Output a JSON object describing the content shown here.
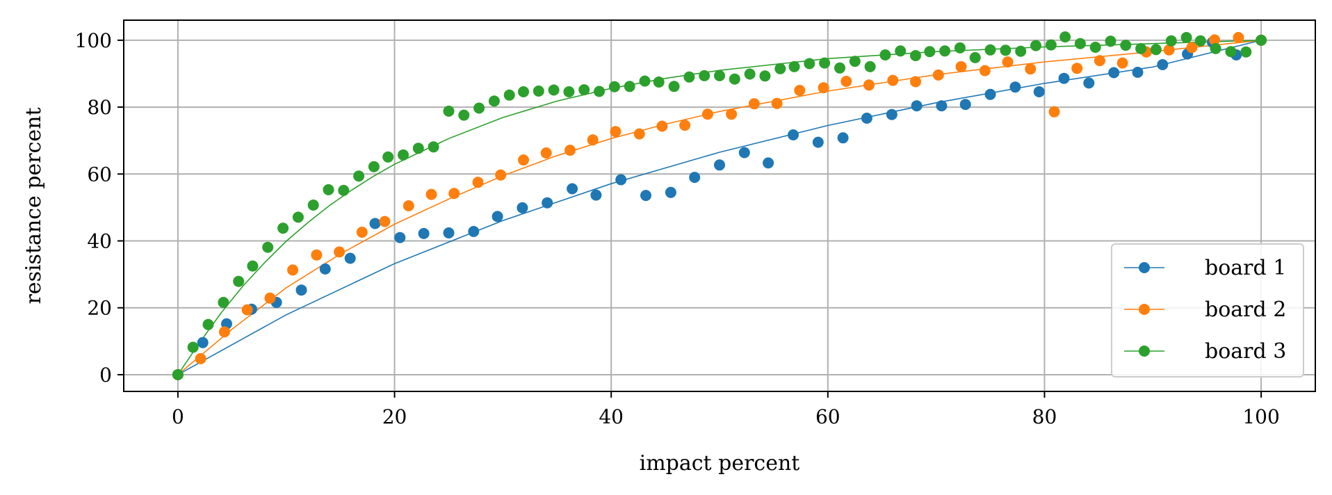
{
  "chart_data": {
    "type": "scatter",
    "title": "",
    "xlabel": "impact percent",
    "ylabel": "resistance percent",
    "xlim": [
      -5,
      105
    ],
    "ylim": [
      -5,
      106
    ],
    "xticks": [
      0,
      20,
      40,
      60,
      80,
      100
    ],
    "yticks": [
      0,
      20,
      40,
      60,
      80,
      100
    ],
    "grid": true,
    "legend_position": "bottom-right",
    "series": [
      {
        "name": "board 1",
        "color": "#1f77b4",
        "points": [
          [
            0,
            0
          ],
          [
            2.3,
            9.6
          ],
          [
            4.5,
            15.2
          ],
          [
            6.8,
            19.6
          ],
          [
            9.1,
            21.6
          ],
          [
            11.4,
            25.3
          ],
          [
            13.6,
            31.6
          ],
          [
            15.9,
            34.8
          ],
          [
            18.2,
            45.2
          ],
          [
            20.5,
            41.0
          ],
          [
            22.7,
            42.2
          ],
          [
            25.0,
            42.4
          ],
          [
            27.3,
            42.8
          ],
          [
            29.5,
            47.3
          ],
          [
            31.8,
            49.9
          ],
          [
            34.1,
            51.4
          ],
          [
            36.4,
            55.6
          ],
          [
            38.6,
            53.7
          ],
          [
            40.9,
            58.3
          ],
          [
            43.2,
            53.6
          ],
          [
            45.5,
            54.5
          ],
          [
            47.7,
            59.0
          ],
          [
            50.0,
            62.7
          ],
          [
            52.3,
            66.4
          ],
          [
            54.5,
            63.3
          ],
          [
            56.8,
            71.7
          ],
          [
            59.1,
            69.5
          ],
          [
            61.4,
            70.8
          ],
          [
            63.6,
            76.7
          ],
          [
            65.9,
            77.8
          ],
          [
            68.2,
            80.4
          ],
          [
            70.5,
            80.4
          ],
          [
            72.7,
            80.8
          ],
          [
            75.0,
            83.8
          ],
          [
            77.3,
            86.0
          ],
          [
            79.5,
            84.6
          ],
          [
            81.8,
            88.6
          ],
          [
            84.1,
            87.2
          ],
          [
            86.4,
            90.3
          ],
          [
            88.6,
            90.4
          ],
          [
            90.9,
            92.7
          ],
          [
            93.2,
            95.9
          ],
          [
            95.5,
            99.4
          ],
          [
            97.7,
            95.6
          ],
          [
            100,
            100
          ]
        ],
        "fit": [
          [
            0,
            0
          ],
          [
            10,
            17.9
          ],
          [
            20,
            33.2
          ],
          [
            30,
            46.1
          ],
          [
            40,
            57.1
          ],
          [
            50,
            66.5
          ],
          [
            60,
            74.5
          ],
          [
            70,
            81.3
          ],
          [
            80,
            87.1
          ],
          [
            90,
            92.0
          ],
          [
            100,
            100
          ]
        ]
      },
      {
        "name": "board 2",
        "color": "#ff7f0e",
        "points": [
          [
            0,
            0
          ],
          [
            2.1,
            4.8
          ],
          [
            4.3,
            12.8
          ],
          [
            6.4,
            19.4
          ],
          [
            8.5,
            22.9
          ],
          [
            10.6,
            31.3
          ],
          [
            12.8,
            35.8
          ],
          [
            14.9,
            36.7
          ],
          [
            17.0,
            42.6
          ],
          [
            19.1,
            45.8
          ],
          [
            21.3,
            50.5
          ],
          [
            23.4,
            53.9
          ],
          [
            25.5,
            54.2
          ],
          [
            27.7,
            57.5
          ],
          [
            29.8,
            59.7
          ],
          [
            31.9,
            64.2
          ],
          [
            34.0,
            66.3
          ],
          [
            36.2,
            67.1
          ],
          [
            38.3,
            70.2
          ],
          [
            40.4,
            72.7
          ],
          [
            42.6,
            72.0
          ],
          [
            44.7,
            74.3
          ],
          [
            46.8,
            74.6
          ],
          [
            48.9,
            77.9
          ],
          [
            51.1,
            77.9
          ],
          [
            53.2,
            81.0
          ],
          [
            55.3,
            81.1
          ],
          [
            57.4,
            85.0
          ],
          [
            59.6,
            85.8
          ],
          [
            61.7,
            87.7
          ],
          [
            63.8,
            86.6
          ],
          [
            66.0,
            88.0
          ],
          [
            68.1,
            87.6
          ],
          [
            70.2,
            89.6
          ],
          [
            72.3,
            92.1
          ],
          [
            74.5,
            90.9
          ],
          [
            76.6,
            93.5
          ],
          [
            78.7,
            91.4
          ],
          [
            80.9,
            78.6
          ],
          [
            83.0,
            91.6
          ],
          [
            85.1,
            93.9
          ],
          [
            87.2,
            93.2
          ],
          [
            89.4,
            96.5
          ],
          [
            91.5,
            97.1
          ],
          [
            93.6,
            97.8
          ],
          [
            95.7,
            100.1
          ],
          [
            97.9,
            100.8
          ],
          [
            100,
            100
          ]
        ],
        "fit": [
          [
            0,
            0
          ],
          [
            5,
            13.6
          ],
          [
            10,
            26.0
          ],
          [
            15,
            36.1
          ],
          [
            20,
            45.0
          ],
          [
            25,
            52.5
          ],
          [
            30,
            59.5
          ],
          [
            35,
            65.5
          ],
          [
            40,
            70.6
          ],
          [
            45,
            74.9
          ],
          [
            50,
            78.7
          ],
          [
            60,
            84.8
          ],
          [
            70,
            89.7
          ],
          [
            80,
            93.5
          ],
          [
            90,
            96.6
          ],
          [
            100,
            100
          ]
        ]
      },
      {
        "name": "board 3",
        "color": "#2ca02c",
        "points": [
          [
            0,
            0
          ],
          [
            1.4,
            8.2
          ],
          [
            2.8,
            15.0
          ],
          [
            4.2,
            21.6
          ],
          [
            5.6,
            27.9
          ],
          [
            6.9,
            32.5
          ],
          [
            8.3,
            38.1
          ],
          [
            9.7,
            43.8
          ],
          [
            11.1,
            47.1
          ],
          [
            12.5,
            50.7
          ],
          [
            13.9,
            55.3
          ],
          [
            15.3,
            55.1
          ],
          [
            16.7,
            59.4
          ],
          [
            18.1,
            62.2
          ],
          [
            19.4,
            65.1
          ],
          [
            20.8,
            65.7
          ],
          [
            22.2,
            67.7
          ],
          [
            23.6,
            68.1
          ],
          [
            25.0,
            78.8
          ],
          [
            26.4,
            77.6
          ],
          [
            27.8,
            79.7
          ],
          [
            29.2,
            81.8
          ],
          [
            30.6,
            83.6
          ],
          [
            31.9,
            84.6
          ],
          [
            33.3,
            84.8
          ],
          [
            34.7,
            85.1
          ],
          [
            36.1,
            84.6
          ],
          [
            37.5,
            85.2
          ],
          [
            38.9,
            84.7
          ],
          [
            40.3,
            86.1
          ],
          [
            41.7,
            86.2
          ],
          [
            43.1,
            87.8
          ],
          [
            44.4,
            87.5
          ],
          [
            45.8,
            86.2
          ],
          [
            47.2,
            89.0
          ],
          [
            48.6,
            89.4
          ],
          [
            50.0,
            89.4
          ],
          [
            51.4,
            88.4
          ],
          [
            52.8,
            89.9
          ],
          [
            54.2,
            89.3
          ],
          [
            55.6,
            91.5
          ],
          [
            56.9,
            92.1
          ],
          [
            58.3,
            93.0
          ],
          [
            59.7,
            93.2
          ],
          [
            61.1,
            91.7
          ],
          [
            62.5,
            93.7
          ],
          [
            63.9,
            92.1
          ],
          [
            65.3,
            95.6
          ],
          [
            66.7,
            96.8
          ],
          [
            68.1,
            95.4
          ],
          [
            69.4,
            96.6
          ],
          [
            70.8,
            96.8
          ],
          [
            72.2,
            97.7
          ],
          [
            73.6,
            94.8
          ],
          [
            75.0,
            97.1
          ],
          [
            76.4,
            97.0
          ],
          [
            77.8,
            96.7
          ],
          [
            79.2,
            98.4
          ],
          [
            80.6,
            98.6
          ],
          [
            81.9,
            101.0
          ],
          [
            83.3,
            99.0
          ],
          [
            84.7,
            97.9
          ],
          [
            86.1,
            99.7
          ],
          [
            87.5,
            98.5
          ],
          [
            88.9,
            97.5
          ],
          [
            90.3,
            97.2
          ],
          [
            91.7,
            99.8
          ],
          [
            93.1,
            100.8
          ],
          [
            94.4,
            99.8
          ],
          [
            95.8,
            97.5
          ],
          [
            97.2,
            96.6
          ],
          [
            98.6,
            96.5
          ],
          [
            100,
            100
          ]
        ],
        "fit": [
          [
            0,
            0
          ],
          [
            2,
            9.6
          ],
          [
            4,
            18.5
          ],
          [
            6,
            26.5
          ],
          [
            8,
            33.5
          ],
          [
            10,
            39.9
          ],
          [
            12,
            45.5
          ],
          [
            14,
            50.6
          ],
          [
            16,
            55.1
          ],
          [
            18,
            59.2
          ],
          [
            20,
            62.9
          ],
          [
            25,
            70.6
          ],
          [
            30,
            76.9
          ],
          [
            35,
            81.8
          ],
          [
            40,
            85.6
          ],
          [
            45,
            88.6
          ],
          [
            50,
            91.0
          ],
          [
            60,
            94.5
          ],
          [
            70,
            96.6
          ],
          [
            80,
            98.0
          ],
          [
            90,
            99.0
          ],
          [
            100,
            100
          ]
        ]
      }
    ]
  }
}
